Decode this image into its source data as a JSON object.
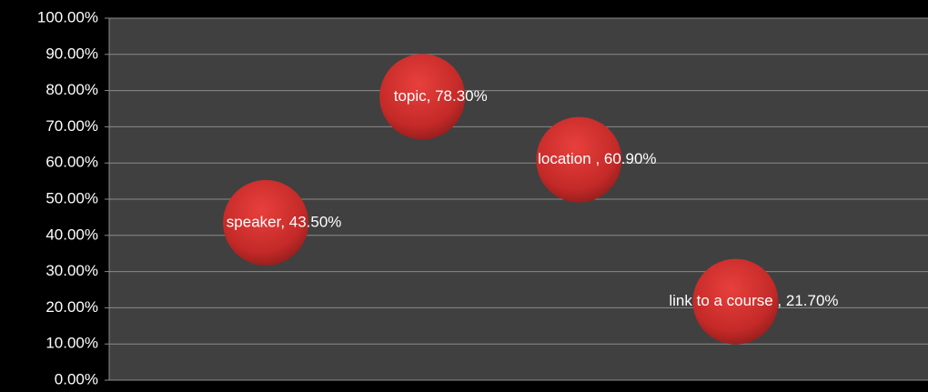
{
  "chart_data": {
    "type": "bubble",
    "x": [
      1,
      2,
      3,
      4
    ],
    "values": [
      43.5,
      78.3,
      60.9,
      21.7
    ],
    "value_labels": [
      "speaker, 43.50%",
      "topic, 78.30%",
      "location , 60.90%",
      "link to a course , 21.70%"
    ],
    "color": "#d0302e",
    "xlim": [
      0,
      5.2
    ],
    "ylim": [
      0,
      100
    ],
    "yticks": [
      {
        "value": 0,
        "label": "0.00%"
      },
      {
        "value": 10,
        "label": "10.00%"
      },
      {
        "value": 20,
        "label": "20.00%"
      },
      {
        "value": 30,
        "label": "30.00%"
      },
      {
        "value": 40,
        "label": "40.00%"
      },
      {
        "value": 50,
        "label": "50.00%"
      },
      {
        "value": 60,
        "label": "60.00%"
      },
      {
        "value": 70,
        "label": "70.00%"
      },
      {
        "value": 80,
        "label": "80.00%"
      },
      {
        "value": 90,
        "label": "90.00%"
      },
      {
        "value": 100,
        "label": "100.00%"
      }
    ],
    "grid": true
  }
}
